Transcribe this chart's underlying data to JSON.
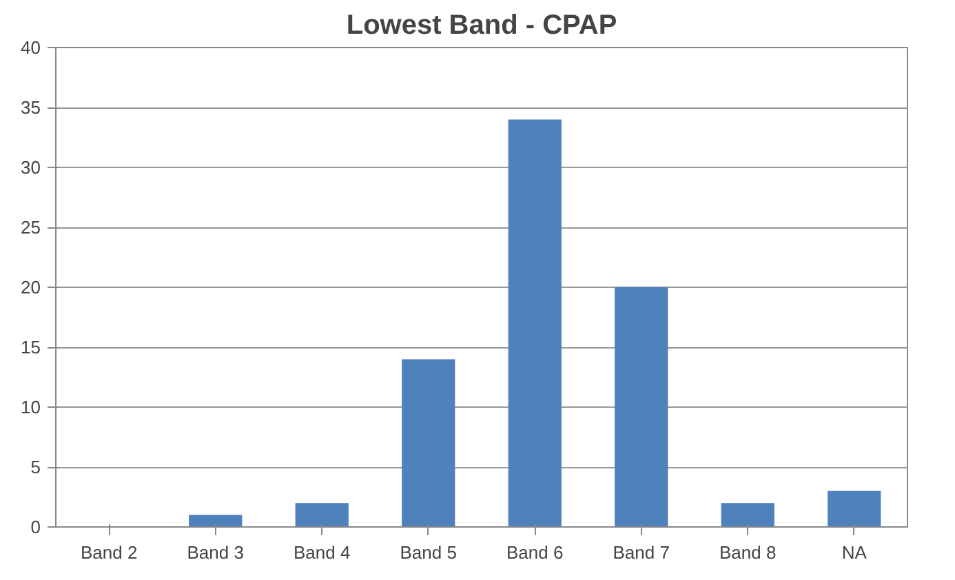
{
  "chart_data": {
    "type": "bar",
    "title": "Lowest Band - CPAP",
    "categories": [
      "Band 2",
      "Band 3",
      "Band 4",
      "Band 5",
      "Band 6",
      "Band 7",
      "Band 8",
      "NA"
    ],
    "values": [
      0,
      1,
      2,
      14,
      34,
      20,
      2,
      3
    ],
    "color": "#4f81bd",
    "ylim": [
      0,
      40
    ],
    "yticks": [
      0,
      5,
      10,
      15,
      20,
      25,
      30,
      35,
      40
    ],
    "grid": "y"
  }
}
